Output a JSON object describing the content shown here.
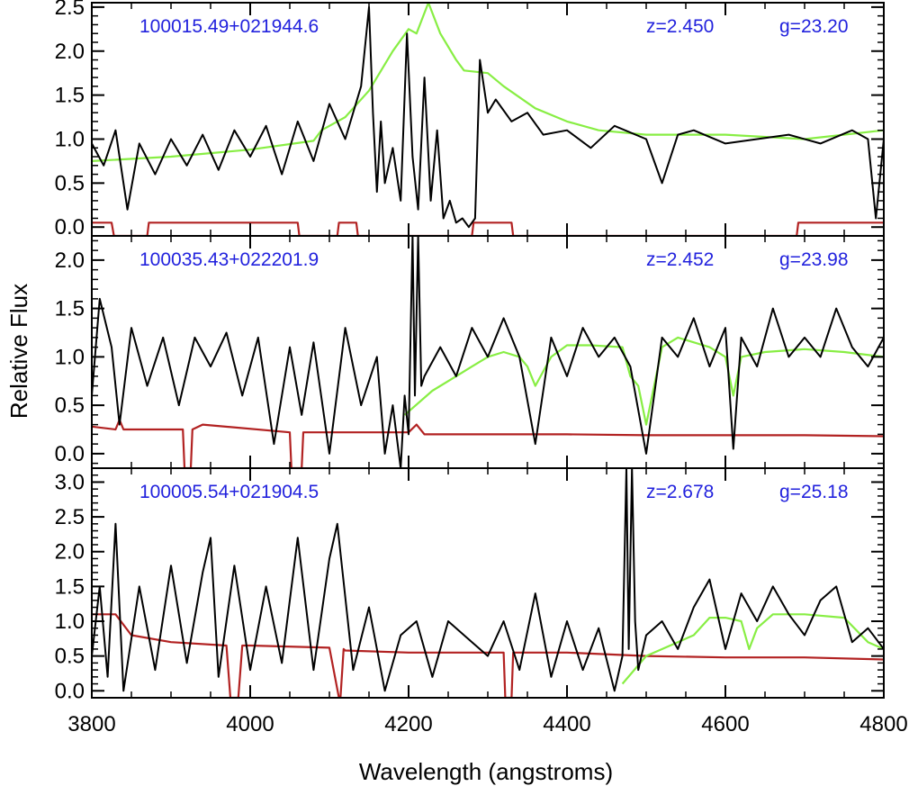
{
  "chart_data": {
    "type": "line",
    "xlabel": "Wavelength (angstroms)",
    "ylabel": "Relative Flux",
    "xlim": [
      3800,
      4800
    ],
    "x_ticks": [
      "3800",
      "4000",
      "4200",
      "4400",
      "4600",
      "4800"
    ],
    "colors": {
      "spectrum": "#000000",
      "template": "#88ee44",
      "error": "#b22222",
      "annotation": "#2222dd"
    },
    "panels": [
      {
        "object": "100015.49+021944.6",
        "redshift": "z=2.450",
        "magnitude": "g=23.20",
        "ylim": [
          -0.1,
          2.55
        ],
        "y_ticks": [
          "0.0",
          "0.5",
          "1.0",
          "1.5",
          "2.0",
          "2.5"
        ],
        "series": [
          {
            "role": "spectrum",
            "x": [
              3800,
              3815,
              3830,
              3845,
              3860,
              3880,
              3900,
              3920,
              3940,
              3960,
              3980,
              4000,
              4020,
              4040,
              4060,
              4080,
              4100,
              4120,
              4140,
              4150,
              4155,
              4160,
              4165,
              4170,
              4180,
              4190,
              4198,
              4205,
              4212,
              4220,
              4228,
              4236,
              4244,
              4252,
              4260,
              4268,
              4276,
              4284,
              4290,
              4295,
              4300,
              4310,
              4330,
              4350,
              4370,
              4400,
              4430,
              4460,
              4500,
              4520,
              4540,
              4560,
              4600,
              4640,
              4680,
              4720,
              4760,
              4780,
              4790,
              4800
            ],
            "y": [
              0.95,
              0.7,
              1.1,
              0.2,
              0.95,
              0.6,
              1.0,
              0.7,
              1.05,
              0.65,
              1.1,
              0.8,
              1.15,
              0.6,
              1.2,
              0.75,
              1.4,
              1.0,
              1.6,
              2.5,
              1.3,
              0.4,
              1.2,
              0.5,
              0.9,
              0.3,
              2.2,
              0.8,
              0.2,
              1.7,
              0.3,
              1.1,
              0.1,
              0.3,
              0.05,
              0.1,
              0.0,
              0.1,
              1.9,
              1.6,
              1.3,
              1.45,
              1.2,
              1.3,
              1.05,
              1.1,
              0.9,
              1.15,
              1.0,
              0.5,
              1.05,
              1.1,
              0.95,
              1.0,
              1.05,
              0.95,
              1.1,
              1.0,
              0.1,
              1.0
            ]
          },
          {
            "role": "template",
            "x": [
              3800,
              3900,
              4000,
              4080,
              4090,
              4120,
              4150,
              4180,
              4200,
              4210,
              4225,
              4240,
              4260,
              4270,
              4300,
              4320,
              4360,
              4400,
              4440,
              4500,
              4600,
              4700,
              4800
            ],
            "y": [
              0.75,
              0.8,
              0.88,
              0.98,
              1.1,
              1.25,
              1.55,
              2.0,
              2.25,
              2.2,
              2.55,
              2.2,
              1.9,
              1.78,
              1.75,
              1.6,
              1.35,
              1.2,
              1.1,
              1.05,
              1.05,
              1.0,
              1.1
            ]
          },
          {
            "role": "error",
            "x": [
              3800,
              3825,
              3828,
              3870,
              3872,
              4060,
              4062,
              4110,
              4112,
              4134,
              4136,
              4280,
              4282,
              4330,
              4332,
              4690,
              4692,
              4800
            ],
            "y": [
              0.05,
              0.05,
              -0.1,
              -0.1,
              0.05,
              0.05,
              -0.1,
              -0.1,
              0.05,
              0.05,
              -0.1,
              -0.1,
              0.05,
              0.05,
              -0.1,
              -0.1,
              0.05,
              0.05
            ]
          }
        ]
      },
      {
        "object": "100035.43+022201.9",
        "redshift": "z=2.452",
        "magnitude": "g=23.98",
        "ylim": [
          -0.15,
          2.25
        ],
        "y_ticks": [
          "0.0",
          "0.5",
          "1.0",
          "1.5",
          "2.0"
        ],
        "series": [
          {
            "role": "spectrum",
            "x": [
              3800,
              3810,
              3825,
              3835,
              3850,
              3870,
              3890,
              3910,
              3930,
              3950,
              3970,
              3990,
              4010,
              4030,
              4050,
              4065,
              4080,
              4100,
              4120,
              4140,
              4160,
              4170,
              4180,
              4190,
              4195,
              4200,
              4205,
              4208,
              4212,
              4216,
              4220,
              4240,
              4260,
              4280,
              4300,
              4320,
              4340,
              4360,
              4380,
              4400,
              4420,
              4440,
              4460,
              4480,
              4500,
              4520,
              4540,
              4560,
              4580,
              4600,
              4610,
              4620,
              4640,
              4660,
              4680,
              4700,
              4720,
              4740,
              4760,
              4780,
              4800
            ],
            "y": [
              0.6,
              1.6,
              1.1,
              0.3,
              1.3,
              0.7,
              1.2,
              0.5,
              1.2,
              0.9,
              1.25,
              0.6,
              1.2,
              0.1,
              1.1,
              0.4,
              1.15,
              0.0,
              1.3,
              0.5,
              1.0,
              0.0,
              0.5,
              -0.15,
              0.6,
              0.2,
              2.25,
              0.6,
              2.25,
              0.7,
              0.8,
              1.1,
              0.8,
              1.3,
              1.0,
              1.4,
              1.0,
              0.1,
              1.2,
              0.8,
              1.3,
              1.0,
              1.2,
              0.9,
              0.0,
              1.2,
              1.0,
              1.4,
              0.9,
              1.3,
              0.05,
              1.2,
              0.9,
              1.5,
              1.0,
              1.2,
              1.0,
              1.5,
              1.1,
              0.9,
              1.2
            ]
          },
          {
            "role": "template",
            "x": [
              3800,
              4190,
              4195,
              4230,
              4260,
              4280,
              4300,
              4320,
              4340,
              4350,
              4360,
              4380,
              4400,
              4430,
              4470,
              4480,
              4490,
              4500,
              4520,
              4540,
              4580,
              4600,
              4610,
              4620,
              4650,
              4700,
              4750,
              4800
            ],
            "y": [
              null,
              null,
              0.4,
              0.65,
              0.8,
              0.9,
              1.0,
              1.05,
              1.0,
              0.9,
              0.7,
              1.0,
              1.12,
              1.12,
              1.1,
              0.8,
              0.7,
              0.3,
              1.1,
              1.2,
              1.1,
              1.0,
              0.6,
              1.0,
              1.05,
              1.08,
              1.05,
              1.0
            ]
          },
          {
            "role": "error",
            "x": [
              3800,
              3830,
              3835,
              3840,
              3915,
              3917,
              3925,
              3927,
              3940,
              4050,
              4052,
              4065,
              4067,
              4100,
              4200,
              4210,
              4220,
              4240,
              4300,
              4400,
              4500,
              4600,
              4700,
              4800
            ],
            "y": [
              0.28,
              0.25,
              0.35,
              0.25,
              0.25,
              -0.15,
              -0.15,
              0.25,
              0.3,
              0.22,
              -0.15,
              -0.15,
              0.22,
              0.22,
              0.22,
              0.3,
              0.2,
              0.2,
              0.2,
              0.2,
              0.19,
              0.19,
              0.19,
              0.18
            ]
          }
        ]
      },
      {
        "object": "100005.54+021904.5",
        "redshift": "z=2.678",
        "magnitude": "g=25.18",
        "ylim": [
          -0.1,
          3.2
        ],
        "y_ticks": [
          "0.0",
          "0.5",
          "1.0",
          "1.5",
          "2.0",
          "2.5",
          "3.0"
        ],
        "series": [
          {
            "role": "spectrum",
            "x": [
              3800,
              3810,
              3820,
              3830,
              3840,
              3860,
              3880,
              3900,
              3920,
              3940,
              3950,
              3960,
              3980,
              4000,
              4020,
              4040,
              4060,
              4080,
              4100,
              4110,
              4130,
              4150,
              4170,
              4190,
              4210,
              4230,
              4250,
              4280,
              4300,
              4320,
              4340,
              4360,
              4380,
              4400,
              4420,
              4440,
              4460,
              4470,
              4475,
              4478,
              4482,
              4486,
              4490,
              4500,
              4520,
              4540,
              4560,
              4580,
              4600,
              4620,
              4640,
              4660,
              4680,
              4700,
              4720,
              4740,
              4760,
              4780,
              4800
            ],
            "y": [
              0.5,
              1.5,
              0.2,
              2.4,
              0.0,
              1.5,
              0.3,
              1.8,
              0.4,
              1.7,
              2.2,
              0.2,
              1.8,
              0.3,
              1.5,
              0.4,
              2.2,
              0.3,
              1.9,
              2.4,
              0.3,
              1.2,
              0.0,
              0.8,
              1.0,
              0.2,
              1.0,
              0.7,
              0.5,
              1.0,
              0.3,
              1.4,
              0.2,
              1.0,
              0.3,
              0.9,
              0.0,
              0.5,
              3.2,
              0.6,
              3.2,
              1.0,
              0.3,
              0.8,
              1.0,
              0.6,
              1.2,
              1.6,
              0.6,
              1.4,
              1.0,
              1.5,
              1.1,
              0.8,
              1.3,
              1.5,
              0.7,
              0.9,
              0.6
            ]
          },
          {
            "role": "template",
            "x": [
              3800,
              4465,
              4470,
              4500,
              4540,
              4560,
              4580,
              4600,
              4620,
              4630,
              4640,
              4660,
              4700,
              4750,
              4780,
              4800
            ],
            "y": [
              null,
              null,
              0.1,
              0.5,
              0.7,
              0.8,
              1.05,
              1.05,
              1.0,
              0.6,
              0.9,
              1.1,
              1.1,
              1.05,
              0.7,
              0.6
            ]
          },
          {
            "role": "error",
            "x": [
              3800,
              3830,
              3850,
              3900,
              3970,
              3975,
              3985,
              3990,
              4000,
              4100,
              4112,
              4114,
              4118,
              4120,
              4200,
              4320,
              4322,
              4330,
              4332,
              4400,
              4500,
              4600,
              4700,
              4800
            ],
            "y": [
              1.1,
              1.1,
              0.8,
              0.7,
              0.65,
              -0.1,
              -0.1,
              0.65,
              0.65,
              0.62,
              -0.1,
              -0.1,
              0.6,
              0.58,
              0.55,
              0.55,
              -0.1,
              -0.1,
              0.55,
              0.55,
              0.5,
              0.48,
              0.48,
              0.45
            ]
          }
        ]
      }
    ]
  }
}
